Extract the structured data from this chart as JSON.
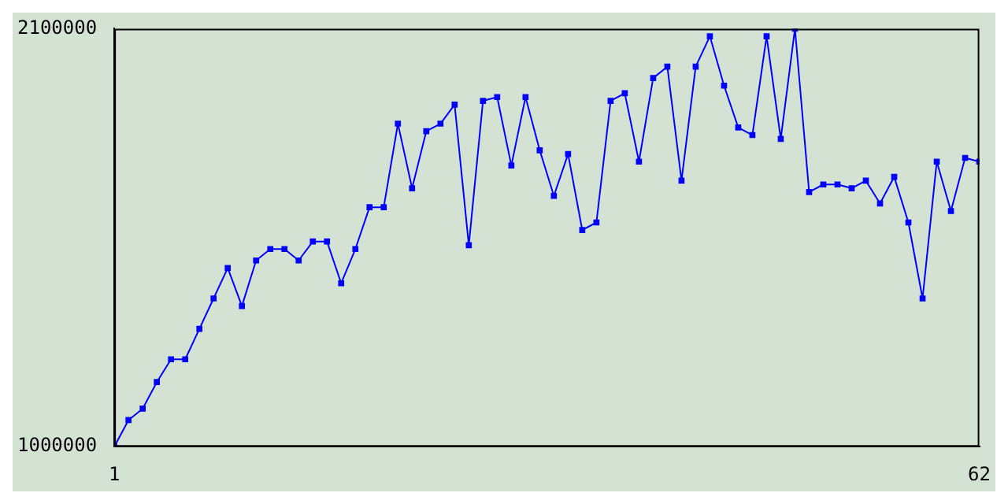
{
  "chart_data": {
    "type": "line",
    "x": [
      1,
      2,
      3,
      4,
      5,
      6,
      7,
      8,
      9,
      10,
      11,
      12,
      13,
      14,
      15,
      16,
      17,
      18,
      19,
      20,
      21,
      22,
      23,
      24,
      25,
      26,
      27,
      28,
      29,
      30,
      31,
      32,
      33,
      34,
      35,
      36,
      37,
      38,
      39,
      40,
      41,
      42,
      43,
      44,
      45,
      46,
      47,
      48,
      49,
      50,
      51,
      52,
      53,
      54,
      55,
      56,
      57,
      58,
      59,
      60,
      61,
      62
    ],
    "series": [
      {
        "color": "#0000ff",
        "values": [
          1000000,
          1070000,
          1100000,
          1170000,
          1230000,
          1230000,
          1310000,
          1390000,
          1470000,
          1370000,
          1490000,
          1520000,
          1520000,
          1490000,
          1540000,
          1540000,
          1430000,
          1520000,
          1630000,
          1630000,
          1850000,
          1680000,
          1830000,
          1850000,
          1900000,
          1530000,
          1910000,
          1920000,
          1740000,
          1920000,
          1780000,
          1660000,
          1770000,
          1570000,
          1590000,
          1910000,
          1930000,
          1750000,
          1970000,
          2000000,
          1700000,
          2000000,
          2080000,
          1950000,
          1840000,
          1820000,
          2080000,
          1810000,
          2100000,
          1670000,
          1690000,
          1690000,
          1680000,
          1700000,
          1640000,
          1710000,
          1590000,
          1390000,
          1750000,
          1620000,
          1760000,
          1750000
        ]
      }
    ],
    "xlim": [
      1,
      62
    ],
    "xticks": [
      1,
      62
    ],
    "ylim": [
      1000000,
      2100000
    ],
    "yticks": [
      1000000,
      2100000
    ],
    "grid": false,
    "legend": false,
    "marker": "square",
    "line_style": "solid"
  }
}
